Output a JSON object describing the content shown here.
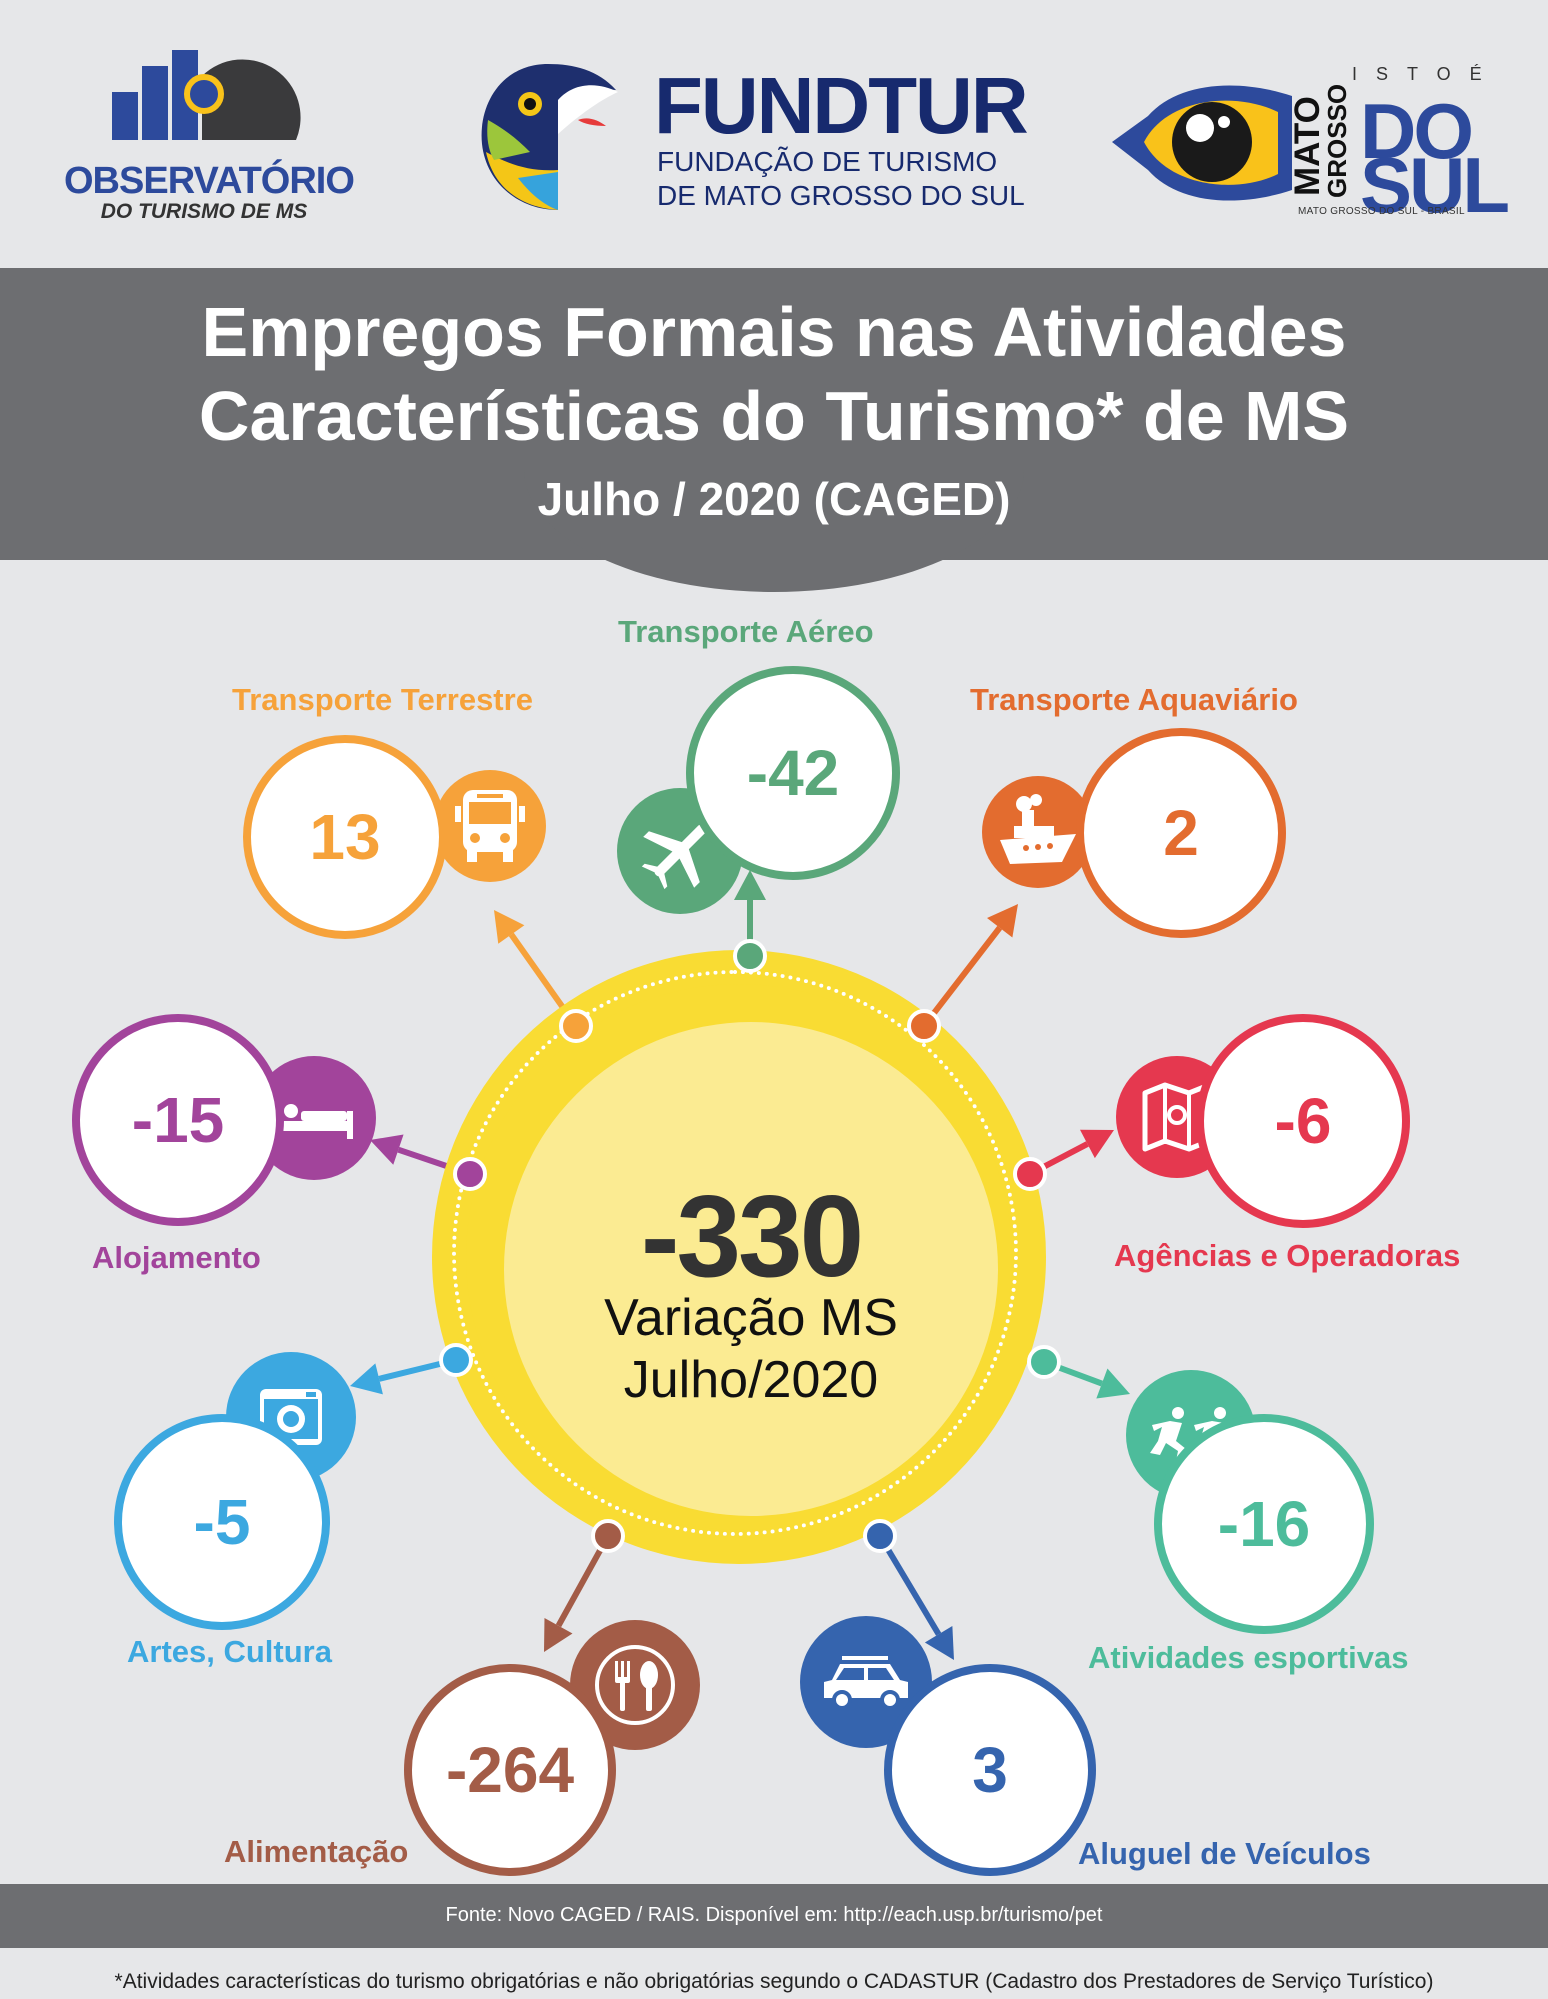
{
  "logos": {
    "observatorio": {
      "line1": "OBSERVATÓRIO",
      "line2": "DO TURISMO DE MS"
    },
    "fundtur": {
      "name": "FUNDTUR",
      "sub1": "FUNDAÇÃO DE TURISMO",
      "sub2": "DE MATO GROSSO DO SUL"
    },
    "ms": {
      "istoe": "ISTOÉ",
      "mato": "MATO",
      "grosso": "GROSSO",
      "do": "DO",
      "sul": "SUL",
      "bottom": "MATO GROSSO DO SUL - BRASIL"
    }
  },
  "header": {
    "title_line1": "Empregos Formais nas Atividades",
    "title_line2": "Características do Turismo* de MS",
    "subtitle": "Julho / 2020 (CAGED)"
  },
  "center": {
    "value": "-330",
    "label_line1": "Variação MS",
    "label_line2": "Julho/2020"
  },
  "categories": [
    {
      "id": "transporte-terrestre",
      "label": "Transporte Terrestre",
      "value": "13",
      "color": "#f6a23a",
      "icon": "bus-icon"
    },
    {
      "id": "transporte-aereo",
      "label": "Transporte Aéreo",
      "value": "-42",
      "color": "#5aa77a",
      "icon": "airplane-icon"
    },
    {
      "id": "transporte-aquaviario",
      "label": "Transporte Aquaviário",
      "value": "2",
      "color": "#e36c2f",
      "icon": "ship-icon"
    },
    {
      "id": "agencias-operadoras",
      "label": "Agências e Operadoras",
      "value": "-6",
      "color": "#e5384f",
      "icon": "map-icon"
    },
    {
      "id": "atividades-esportivas",
      "label": "Atividades esportivas",
      "value": "-16",
      "color": "#4dbc9b",
      "icon": "runners-icon"
    },
    {
      "id": "aluguel-veiculos",
      "label": "Aluguel de Veículos",
      "value": "3",
      "color": "#3564ae",
      "icon": "car-icon"
    },
    {
      "id": "alimentacao",
      "label": "Alimentação",
      "value": "-264",
      "color": "#a35c47",
      "icon": "fork-spoon-icon"
    },
    {
      "id": "artes-cultura",
      "label": "Artes, Cultura",
      "value": "-5",
      "color": "#3ca8e0",
      "icon": "camera-icon"
    },
    {
      "id": "alojamento",
      "label": "Alojamento",
      "value": "-15",
      "color": "#a2449b",
      "icon": "bed-icon"
    }
  ],
  "footer": {
    "source": "Fonte: Novo CAGED / RAIS. Disponível em: http://each.usp.br/turismo/pet",
    "footnote": "*Atividades características do turismo obrigatórias e não obrigatórias segundo o CADASTUR (Cadastro dos Prestadores de Serviço Turístico)"
  }
}
